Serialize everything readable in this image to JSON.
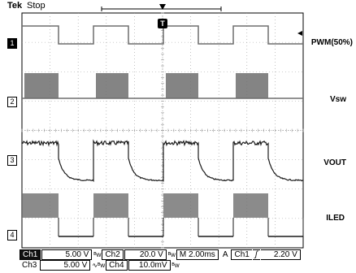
{
  "header": {
    "brand": "Tek",
    "run_state": "Stop",
    "trigger_marker": "T"
  },
  "channel_markers": [
    "1",
    "2",
    "3",
    "4"
  ],
  "channel_labels": {
    "ch1": "PWM(50%)",
    "ch2": "Vsw",
    "ch3": "VOUT",
    "ch4": "ILED"
  },
  "colors": {
    "trace": "#6e6e6e",
    "trace_dark": "#1a1a1a",
    "grid": "#9a9a9a",
    "background": "#ffffff"
  },
  "status_bar": {
    "row1": {
      "ch1_name": "Ch1",
      "ch1_scale": "5.00 V",
      "ch2_name": "Ch2",
      "ch2_scale": "20.0 V",
      "timebase": "M 2.00ms",
      "trigger_mode": "A",
      "trigger_source": "Ch1",
      "trigger_slope": "ʃ",
      "trigger_level": "2.20 V"
    },
    "row2": {
      "ch3_name": "Ch3",
      "ch3_scale": "5.00 V",
      "ch4_name": "Ch4",
      "ch4_scale": "10.0mV"
    }
  }
}
